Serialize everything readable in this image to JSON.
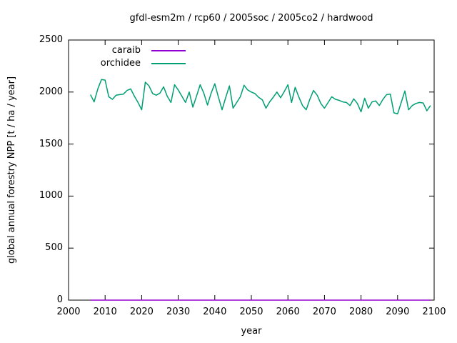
{
  "window": {
    "background": "#ffffff",
    "foreground": "#000000"
  },
  "chart_data": {
    "type": "line",
    "title": "gfdl-esm2m / rcp60 / 2005soc / 2005co2 / hardwood",
    "xlabel": "year",
    "ylabel": "global annual forestry NPP [t / ha / year]",
    "xlim": [
      2000,
      2100
    ],
    "ylim": [
      0,
      2500
    ],
    "xticks": [
      2000,
      2010,
      2020,
      2030,
      2040,
      2050,
      2060,
      2070,
      2080,
      2090,
      2100
    ],
    "yticks": [
      0,
      500,
      1000,
      1500,
      2000,
      2500
    ],
    "grid": false,
    "legend_position": "top-left-inside",
    "border_color": "#000000",
    "x": [
      2006,
      2007,
      2008,
      2009,
      2010,
      2011,
      2012,
      2013,
      2014,
      2015,
      2016,
      2017,
      2018,
      2019,
      2020,
      2021,
      2022,
      2023,
      2024,
      2025,
      2026,
      2027,
      2028,
      2029,
      2030,
      2031,
      2032,
      2033,
      2034,
      2035,
      2036,
      2037,
      2038,
      2039,
      2040,
      2041,
      2042,
      2043,
      2044,
      2045,
      2046,
      2047,
      2048,
      2049,
      2050,
      2051,
      2052,
      2053,
      2054,
      2055,
      2056,
      2057,
      2058,
      2059,
      2060,
      2061,
      2062,
      2063,
      2064,
      2065,
      2066,
      2067,
      2068,
      2069,
      2070,
      2071,
      2072,
      2073,
      2074,
      2075,
      2076,
      2077,
      2078,
      2079,
      2080,
      2081,
      2082,
      2083,
      2084,
      2085,
      2086,
      2087,
      2088,
      2089,
      2090,
      2091,
      2092,
      2093,
      2094,
      2095,
      2096,
      2097,
      2098,
      2099
    ],
    "series": [
      {
        "name": "caraib",
        "color": "#9400d3",
        "values": [
          0,
          0,
          0,
          0,
          0,
          0,
          0,
          0,
          0,
          0,
          0,
          0,
          0,
          0,
          0,
          0,
          0,
          0,
          0,
          0,
          0,
          0,
          0,
          0,
          0,
          0,
          0,
          0,
          0,
          0,
          0,
          0,
          0,
          0,
          0,
          0,
          0,
          0,
          0,
          0,
          0,
          0,
          0,
          0,
          0,
          0,
          0,
          0,
          0,
          0,
          0,
          0,
          0,
          0,
          0,
          0,
          0,
          0,
          0,
          0,
          0,
          0,
          0,
          0,
          0,
          0,
          0,
          0,
          0,
          0,
          0,
          0,
          0,
          0,
          0,
          0,
          0,
          0,
          0,
          0,
          0,
          0,
          0,
          0,
          0,
          0,
          0,
          0,
          0,
          0,
          0,
          0,
          0,
          0
        ]
      },
      {
        "name": "orchidee",
        "color": "#009e73",
        "values": [
          1975,
          1905,
          2030,
          2120,
          2115,
          1955,
          1930,
          1970,
          1975,
          1980,
          2015,
          2030,
          1960,
          1900,
          1830,
          2095,
          2060,
          1985,
          1970,
          1990,
          2050,
          1960,
          1900,
          2070,
          2020,
          1960,
          1900,
          2000,
          1855,
          1960,
          2070,
          1990,
          1875,
          1990,
          2080,
          1950,
          1830,
          1950,
          2060,
          1845,
          1900,
          1955,
          2065,
          2020,
          2000,
          1985,
          1950,
          1925,
          1845,
          1905,
          1950,
          2000,
          1945,
          2005,
          2070,
          1900,
          2045,
          1950,
          1870,
          1830,
          1930,
          2015,
          1970,
          1890,
          1845,
          1900,
          1955,
          1930,
          1920,
          1905,
          1900,
          1870,
          1935,
          1890,
          1810,
          1940,
          1845,
          1905,
          1915,
          1870,
          1930,
          1975,
          1980,
          1800,
          1790,
          1900,
          2010,
          1830,
          1870,
          1890,
          1900,
          1895,
          1820,
          1870
        ]
      }
    ]
  }
}
